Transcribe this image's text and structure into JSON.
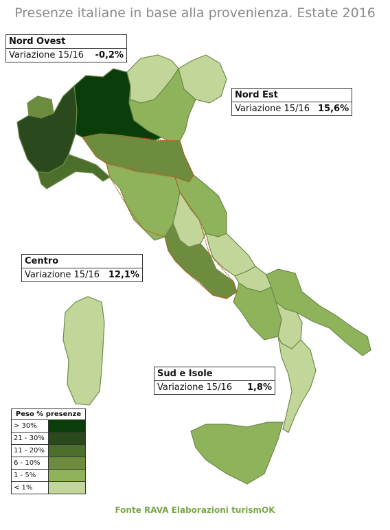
{
  "title": "Presenze italiane in base alla provenienza. Estate 2016",
  "callouts": {
    "nord_ovest": {
      "name": "Nord Ovest",
      "label": "Variazione 15/16",
      "value": "-0,2%"
    },
    "nord_est": {
      "name": "Nord Est",
      "label": "Variazione 15/16",
      "value": "15,6%"
    },
    "centro": {
      "name": "Centro",
      "label": "Variazione 15/16",
      "value": "12,1%"
    },
    "sud_isole": {
      "name": "Sud e Isole",
      "label": "Variazione 15/16",
      "value": "1,8%"
    }
  },
  "legend": {
    "title": "Peso % presenze",
    "items": [
      {
        "label": "> 30%",
        "color": "#0b3d0b"
      },
      {
        "label": "21 - 30%",
        "color": "#2a4a1e"
      },
      {
        "label": "11 - 20%",
        "color": "#4c6f2c"
      },
      {
        "label": "6 - 10%",
        "color": "#6e8c3e"
      },
      {
        "label": "1 - 5%",
        "color": "#8fb35a"
      },
      {
        "label": "< 1%",
        "color": "#c2d69a"
      }
    ]
  },
  "regions": {
    "lombardia": "#0b3d0b",
    "piemonte": "#2a4a1e",
    "valle_aosta": "#6e8c3e",
    "liguria": "#4c6f2c",
    "trentino": "#c2d69a",
    "veneto": "#8fb35a",
    "friuli": "#c2d69a",
    "emilia_romagna": "#6e8c3e",
    "toscana": "#8fb35a",
    "marche": "#8fb35a",
    "umbria": "#c2d69a",
    "lazio": "#6e8c3e",
    "abruzzo": "#c2d69a",
    "molise": "#c2d69a",
    "campania": "#8fb35a",
    "puglia": "#8fb35a",
    "basilicata": "#c2d69a",
    "calabria": "#c2d69a",
    "sicilia": "#8fb35a",
    "sardegna": "#c2d69a"
  },
  "footer": "Fonte RAVA Elaborazioni turismOK"
}
